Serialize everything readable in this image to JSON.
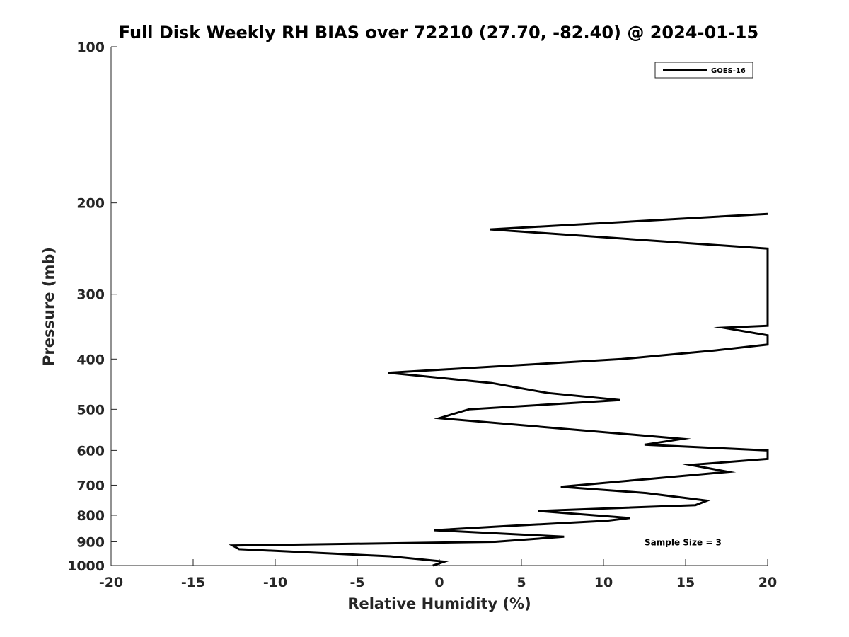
{
  "chart_data": {
    "type": "line",
    "title": "Full Disk Weekly RH BIAS over 72210 (27.70, -82.40) @ 2024-01-15",
    "xlabel": "Relative Humidity (%)",
    "ylabel": "Pressure (mb)",
    "xlim": [
      -20,
      20
    ],
    "ylim": [
      100,
      1000
    ],
    "y_scale": "log",
    "y_reversed": true,
    "x_ticks": [
      -20,
      -15,
      -10,
      -5,
      0,
      5,
      10,
      15,
      20
    ],
    "x_tick_labels": [
      "-20",
      "-15",
      "-10",
      "-5",
      "0",
      "5",
      "10",
      "15",
      "20"
    ],
    "y_ticks": [
      100,
      200,
      300,
      400,
      500,
      600,
      700,
      800,
      900,
      1000
    ],
    "y_tick_labels": [
      "100",
      "200",
      "300",
      "400",
      "500",
      "600",
      "700",
      "800",
      "900",
      "1000"
    ],
    "grid": false,
    "legend_position": "top-right",
    "series": [
      {
        "name": "GOES-16",
        "color": "#000000",
        "points": [
          {
            "x": 20.0,
            "y": 210
          },
          {
            "x": 3.1,
            "y": 225
          },
          {
            "x": 20.0,
            "y": 245
          },
          {
            "x": 20.0,
            "y": 345
          },
          {
            "x": 17.3,
            "y": 348
          },
          {
            "x": 20.0,
            "y": 360
          },
          {
            "x": 20.0,
            "y": 375
          },
          {
            "x": 16.8,
            "y": 385
          },
          {
            "x": 11.1,
            "y": 400
          },
          {
            "x": -3.1,
            "y": 425
          },
          {
            "x": 3.2,
            "y": 445
          },
          {
            "x": 6.6,
            "y": 465
          },
          {
            "x": 11.0,
            "y": 480
          },
          {
            "x": 1.8,
            "y": 500
          },
          {
            "x": 0.0,
            "y": 520
          },
          {
            "x": 14.8,
            "y": 570
          },
          {
            "x": 12.5,
            "y": 585
          },
          {
            "x": 20.0,
            "y": 600
          },
          {
            "x": 20.0,
            "y": 623
          },
          {
            "x": 15.3,
            "y": 640
          },
          {
            "x": 17.6,
            "y": 660
          },
          {
            "x": 13.0,
            "y": 680
          },
          {
            "x": 7.4,
            "y": 705
          },
          {
            "x": 12.6,
            "y": 725
          },
          {
            "x": 16.3,
            "y": 750
          },
          {
            "x": 15.6,
            "y": 765
          },
          {
            "x": 6.0,
            "y": 785
          },
          {
            "x": 11.6,
            "y": 810
          },
          {
            "x": 10.2,
            "y": 820
          },
          {
            "x": 3.9,
            "y": 840
          },
          {
            "x": -0.3,
            "y": 855
          },
          {
            "x": 7.6,
            "y": 880
          },
          {
            "x": 3.4,
            "y": 900
          },
          {
            "x": -12.6,
            "y": 915
          },
          {
            "x": -12.2,
            "y": 930
          },
          {
            "x": -3.0,
            "y": 960
          },
          {
            "x": 0.3,
            "y": 983
          },
          {
            "x": -0.4,
            "y": 1000
          }
        ]
      }
    ],
    "annotations": [
      {
        "text": "Sample Size = 3",
        "x": 12.5,
        "y": 900
      }
    ]
  }
}
